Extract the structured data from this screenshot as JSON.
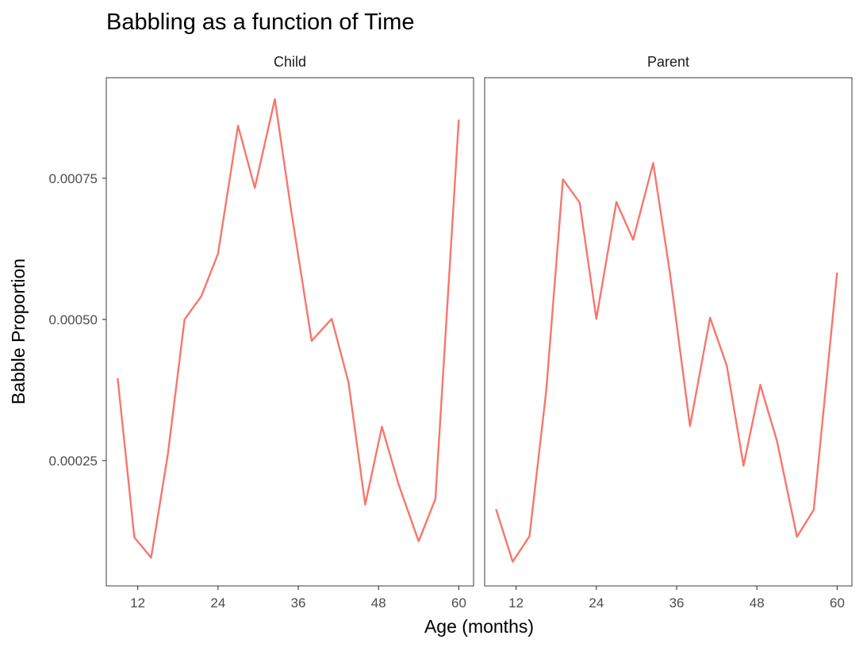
{
  "chart_data": {
    "type": "line",
    "title": "Babbling as a function of Time",
    "xlabel": "Age (months)",
    "ylabel": "Babble Proportion",
    "xlim": [
      7.3,
      62.2
    ],
    "ylim": [
      2.8e-05,
      0.000928
    ],
    "xticks": [
      12,
      24,
      36,
      48,
      60
    ],
    "yticks": [
      0.00025,
      0.0005,
      0.00075
    ],
    "ytick_labels": [
      "0.00025",
      "0.00050",
      "0.00075"
    ],
    "grid": false,
    "line_color": "#F8766D",
    "panels": [
      {
        "name": "Child",
        "x": [
          9,
          11.5,
          14,
          16.5,
          19,
          21.5,
          24,
          27,
          29.5,
          32.5,
          35,
          38,
          41,
          43.5,
          46,
          48.5,
          51,
          54,
          56.5,
          60
        ],
        "y": [
          0.000396,
          0.000114,
          7.8e-05,
          0.000261,
          0.0005,
          0.000541,
          0.000616,
          0.000843,
          0.000733,
          0.00089,
          0.000688,
          0.000462,
          0.000501,
          0.000389,
          0.000172,
          0.00031,
          0.000208,
          0.000107,
          0.000182,
          0.000854
        ]
      },
      {
        "name": "Parent",
        "x": [
          9,
          11.5,
          14,
          16.5,
          19,
          21.5,
          24,
          27,
          29.5,
          32.5,
          35,
          38,
          41,
          43.5,
          46,
          48.5,
          51,
          54,
          56.5,
          60
        ],
        "y": [
          0.000164,
          7.1e-05,
          0.000116,
          0.000373,
          0.000748,
          0.000707,
          0.000501,
          0.000708,
          0.000641,
          0.000777,
          0.000582,
          0.000311,
          0.000503,
          0.000418,
          0.000241,
          0.000384,
          0.000285,
          0.000115,
          0.000163,
          0.000583
        ]
      }
    ]
  }
}
